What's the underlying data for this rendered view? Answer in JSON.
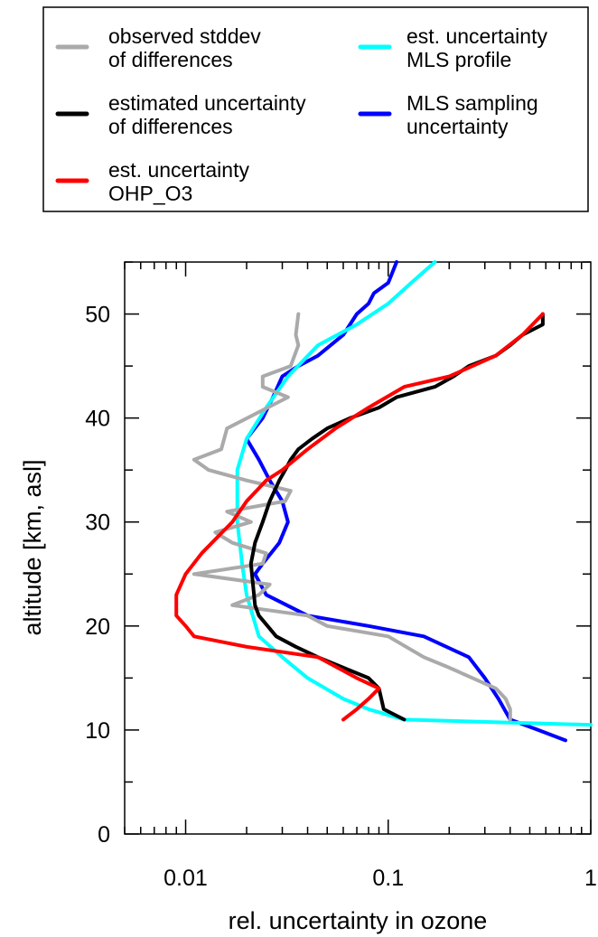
{
  "chart_data": {
    "type": "line",
    "title": "",
    "xlabel": "rel. uncertainty in ozone",
    "ylabel": "altitude [km, asl]",
    "x_scale": "log",
    "xlim": [
      0.005,
      1
    ],
    "ylim": [
      0,
      55
    ],
    "x_ticks": [
      {
        "value": 0.01,
        "label": "0.01"
      },
      {
        "value": 0.1,
        "label": "0.1"
      },
      {
        "value": 1,
        "label": "1"
      }
    ],
    "y_ticks": [
      {
        "value": 0,
        "label": "0"
      },
      {
        "value": 10,
        "label": "10"
      },
      {
        "value": 20,
        "label": "20"
      },
      {
        "value": 30,
        "label": "30"
      },
      {
        "value": 40,
        "label": "40"
      },
      {
        "value": 50,
        "label": "50"
      }
    ],
    "grid": false,
    "legend": {
      "placement": "top, outside the plot",
      "columns": 2
    },
    "series": [
      {
        "name": "observed stddev of differences",
        "legend_lines": [
          "observed stddev",
          "of differences"
        ],
        "color": "#aaaaaa",
        "points": [
          [
            0.036,
            50
          ],
          [
            0.035,
            48
          ],
          [
            0.036,
            47
          ],
          [
            0.033,
            45
          ],
          [
            0.024,
            44
          ],
          [
            0.024,
            43
          ],
          [
            0.032,
            42
          ],
          [
            0.016,
            39
          ],
          [
            0.015,
            37
          ],
          [
            0.011,
            36
          ],
          [
            0.013,
            35
          ],
          [
            0.02,
            34
          ],
          [
            0.033,
            33
          ],
          [
            0.031,
            32
          ],
          [
            0.016,
            31
          ],
          [
            0.021,
            30
          ],
          [
            0.014,
            29
          ],
          [
            0.017,
            28
          ],
          [
            0.025,
            27
          ],
          [
            0.024,
            26
          ],
          [
            0.011,
            25
          ],
          [
            0.026,
            24
          ],
          [
            0.023,
            23
          ],
          [
            0.017,
            22
          ],
          [
            0.04,
            21
          ],
          [
            0.05,
            20
          ],
          [
            0.1,
            19
          ],
          [
            0.15,
            17
          ],
          [
            0.2,
            16
          ],
          [
            0.34,
            14
          ],
          [
            0.38,
            13
          ],
          [
            0.4,
            12
          ],
          [
            0.4,
            11
          ]
        ]
      },
      {
        "name": "estimated uncertainty of differences",
        "legend_lines": [
          "estimated uncertainty",
          "of differences"
        ],
        "color": "#000000",
        "points": [
          [
            0.58,
            50
          ],
          [
            0.58,
            49
          ],
          [
            0.46,
            48
          ],
          [
            0.4,
            47
          ],
          [
            0.34,
            46
          ],
          [
            0.25,
            45
          ],
          [
            0.21,
            44
          ],
          [
            0.17,
            43
          ],
          [
            0.11,
            42
          ],
          [
            0.09,
            41
          ],
          [
            0.065,
            40
          ],
          [
            0.05,
            39
          ],
          [
            0.042,
            38
          ],
          [
            0.036,
            37
          ],
          [
            0.033,
            36
          ],
          [
            0.031,
            35
          ],
          [
            0.029,
            34
          ],
          [
            0.026,
            32
          ],
          [
            0.024,
            30
          ],
          [
            0.022,
            28
          ],
          [
            0.021,
            26
          ],
          [
            0.022,
            22
          ],
          [
            0.023,
            21
          ],
          [
            0.028,
            19
          ],
          [
            0.035,
            18
          ],
          [
            0.045,
            17
          ],
          [
            0.06,
            16
          ],
          [
            0.08,
            15
          ],
          [
            0.09,
            14
          ],
          [
            0.095,
            12
          ],
          [
            0.12,
            11
          ]
        ]
      },
      {
        "name": "est. uncertainty OHP_O3",
        "legend_lines": [
          "est. uncertainty",
          "OHP_O3"
        ],
        "color": "#ff0000",
        "points": [
          [
            0.58,
            50
          ],
          [
            0.46,
            48
          ],
          [
            0.34,
            46
          ],
          [
            0.2,
            44
          ],
          [
            0.12,
            43
          ],
          [
            0.08,
            41
          ],
          [
            0.055,
            39
          ],
          [
            0.04,
            37
          ],
          [
            0.03,
            35
          ],
          [
            0.025,
            34
          ],
          [
            0.02,
            32
          ],
          [
            0.017,
            30
          ],
          [
            0.012,
            27
          ],
          [
            0.01,
            25
          ],
          [
            0.009,
            23
          ],
          [
            0.009,
            21
          ],
          [
            0.01,
            20
          ],
          [
            0.011,
            19
          ],
          [
            0.02,
            18
          ],
          [
            0.045,
            17
          ],
          [
            0.07,
            15
          ],
          [
            0.09,
            14
          ],
          [
            0.08,
            13
          ],
          [
            0.07,
            12
          ],
          [
            0.06,
            11
          ]
        ]
      },
      {
        "name": "est. uncertainty MLS profile",
        "legend_lines": [
          "est. uncertainty",
          "MLS profile"
        ],
        "color": "#00ffff",
        "points": [
          [
            0.17,
            55
          ],
          [
            0.13,
            53
          ],
          [
            0.1,
            51
          ],
          [
            0.07,
            49
          ],
          [
            0.045,
            47
          ],
          [
            0.032,
            44
          ],
          [
            0.025,
            41
          ],
          [
            0.02,
            38
          ],
          [
            0.018,
            35
          ],
          [
            0.018,
            30
          ],
          [
            0.019,
            26
          ],
          [
            0.02,
            23
          ],
          [
            0.023,
            19
          ],
          [
            0.03,
            17
          ],
          [
            0.04,
            15
          ],
          [
            0.06,
            13
          ],
          [
            0.08,
            12
          ],
          [
            0.12,
            11
          ],
          [
            1.0,
            10.5
          ]
        ]
      },
      {
        "name": "MLS sampling uncertainty",
        "legend_lines": [
          "MLS sampling",
          "uncertainty"
        ],
        "color": "#0000ff",
        "points": [
          [
            0.11,
            55
          ],
          [
            0.1,
            53
          ],
          [
            0.085,
            52
          ],
          [
            0.08,
            51
          ],
          [
            0.07,
            50
          ],
          [
            0.06,
            48
          ],
          [
            0.045,
            46
          ],
          [
            0.036,
            45
          ],
          [
            0.03,
            44
          ],
          [
            0.027,
            42
          ],
          [
            0.024,
            40
          ],
          [
            0.02,
            38
          ],
          [
            0.023,
            36
          ],
          [
            0.026,
            34
          ],
          [
            0.03,
            32
          ],
          [
            0.032,
            30
          ],
          [
            0.029,
            28
          ],
          [
            0.024,
            26
          ],
          [
            0.022,
            25
          ],
          [
            0.025,
            23
          ],
          [
            0.04,
            21
          ],
          [
            0.08,
            20
          ],
          [
            0.15,
            19
          ],
          [
            0.25,
            17
          ],
          [
            0.3,
            15
          ],
          [
            0.35,
            13
          ],
          [
            0.4,
            11
          ],
          [
            0.55,
            10
          ],
          [
            0.75,
            9
          ]
        ]
      }
    ]
  }
}
